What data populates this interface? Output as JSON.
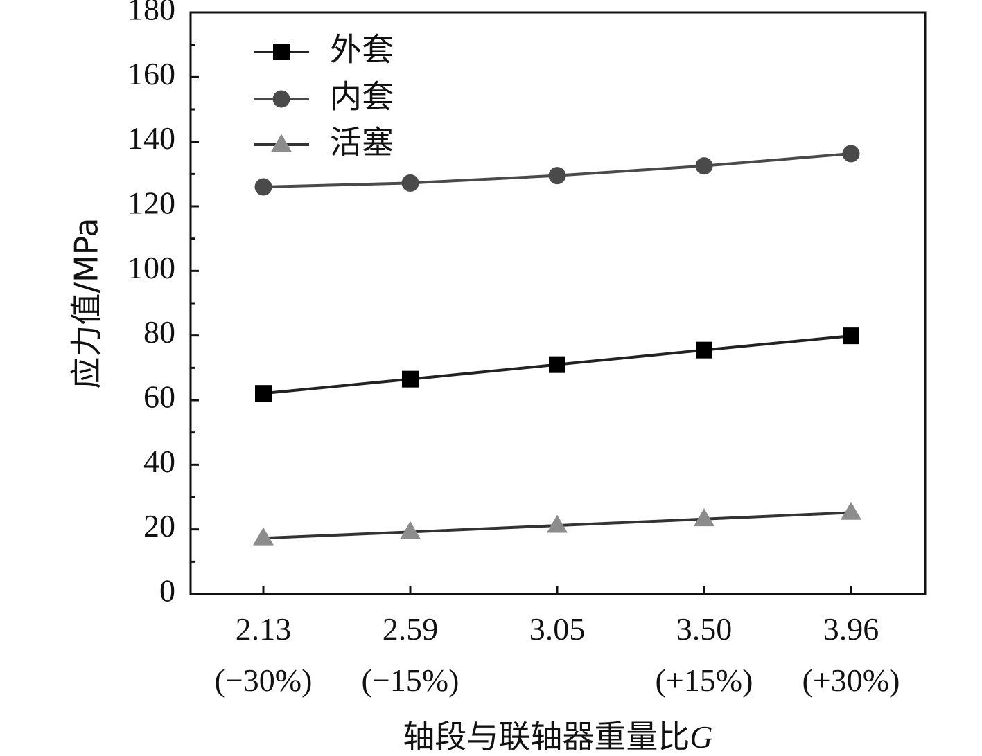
{
  "chart_data": {
    "type": "line",
    "categories": [
      "2.13",
      "2.59",
      "3.05",
      "3.50",
      "3.96"
    ],
    "category_sublabels": [
      "(−30%)",
      "(−15%)",
      "",
      "(+15%)",
      "(+30%)"
    ],
    "xlabel_main": "轴段与联轴器重量比",
    "xlabel_var": "G",
    "ylabel": "应力值/MPa",
    "ylim": [
      0,
      180
    ],
    "yticks": [
      0,
      20,
      40,
      60,
      80,
      100,
      120,
      140,
      160,
      180
    ],
    "legend_position": "top-left",
    "grid": false,
    "series": [
      {
        "name": "外套",
        "marker": "square",
        "color": "#000000",
        "line_color": "#222222",
        "values": [
          62.1,
          66.5,
          71.0,
          75.5,
          79.9
        ]
      },
      {
        "name": "内套",
        "marker": "circle",
        "color": "#4a4a4a",
        "line_color": "#4a4a4a",
        "values": [
          126,
          127.2,
          129.5,
          132.5,
          136.3
        ]
      },
      {
        "name": "活塞",
        "marker": "triangle",
        "color": "#8c8c8c",
        "line_color": "#333333",
        "values": [
          17.3,
          19.2,
          21.2,
          23.2,
          25.2
        ]
      }
    ]
  }
}
